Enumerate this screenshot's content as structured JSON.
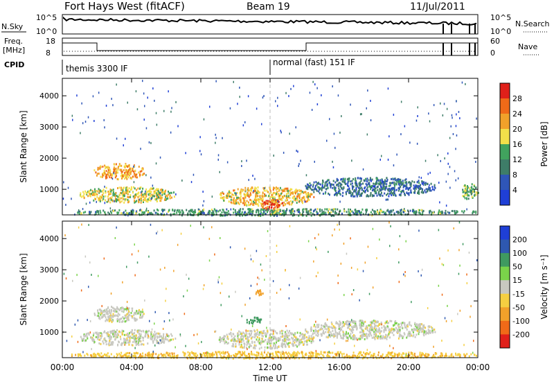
{
  "header": {
    "site": "Fort Hays West (fitACF)",
    "beam": "Beam 19",
    "date": "11/Jul/2011"
  },
  "strips": {
    "nsky_label": "N.Sky",
    "nsearch_label": "N.Search",
    "noise_ticks": [
      "10^5",
      "10^0"
    ],
    "freq_label_top": "Freq.",
    "freq_label_bottom": "[MHz]",
    "freq_ticks": [
      "18",
      "8"
    ],
    "nave_label": "Nave",
    "nave_ticks": [
      "60",
      "0"
    ],
    "cpid_label": "CPID",
    "cpid_segments": [
      {
        "start_hour": 0,
        "label": "themis 3300 IF"
      },
      {
        "start_hour": 12,
        "label": "normal (fast) 151 IF"
      }
    ]
  },
  "colors": {
    "power_scale": [
      "#1f3fd6",
      "#2f56b7",
      "#3e7d68",
      "#41a35e",
      "#f2e04a",
      "#f1a12a",
      "#f06a18",
      "#e0201a"
    ],
    "velocity_scale": [
      "#e0201a",
      "#f06a18",
      "#f1a12a",
      "#f5cf41",
      "#c8c8c0",
      "#7ad34a",
      "#3f9a60",
      "#2e58b0",
      "#1f3fd6"
    ],
    "background": "#ffffff",
    "axis": "#000000"
  },
  "chart_data": [
    {
      "type": "heatmap",
      "title": "",
      "xlabel": "",
      "ylabel": "Slant Range [km]",
      "xlim": [
        0,
        24
      ],
      "ylim": [
        180,
        4560
      ],
      "x_ticks": [
        "00:00",
        "04:00",
        "08:00",
        "12:00",
        "16:00",
        "20:00",
        "00:00"
      ],
      "y_ticks": [
        "1000",
        "2000",
        "3000",
        "4000"
      ],
      "colorbar": {
        "label": "Power [dB]",
        "range": [
          0,
          32
        ],
        "ticks": [
          "4",
          "8",
          "12",
          "16",
          "20",
          "24",
          "28"
        ]
      },
      "echo_regions": [
        {
          "t0": 1.8,
          "t1": 4.7,
          "r0": 1350,
          "r1": 1850,
          "power": 22
        },
        {
          "t0": 1.0,
          "t1": 6.5,
          "r0": 600,
          "r1": 1100,
          "power": 18
        },
        {
          "t0": 9.0,
          "t1": 14.5,
          "r0": 500,
          "r1": 1100,
          "power": 20
        },
        {
          "t0": 11.5,
          "t1": 12.8,
          "r0": 300,
          "r1": 700,
          "power": 26
        },
        {
          "t0": 14.0,
          "t1": 21.5,
          "r0": 800,
          "r1": 1400,
          "power": 8
        },
        {
          "t0": 23.0,
          "t1": 24.0,
          "r0": 700,
          "r1": 1200,
          "power": 14
        },
        {
          "t0": 0.5,
          "t1": 24.0,
          "r0": 180,
          "r1": 400,
          "power": 12
        }
      ]
    },
    {
      "type": "heatmap",
      "title": "",
      "xlabel": "Time UT",
      "ylabel": "Slant Range [km]",
      "xlim": [
        0,
        24
      ],
      "ylim": [
        180,
        4560
      ],
      "x_ticks": [
        "00:00",
        "04:00",
        "08:00",
        "12:00",
        "16:00",
        "20:00",
        "00:00"
      ],
      "y_ticks": [
        "1000",
        "2000",
        "3000",
        "4000"
      ],
      "colorbar": {
        "label": "Velocity [m s⁻¹]",
        "range": [
          -250,
          250
        ],
        "ticks": [
          "200",
          "100",
          "50",
          "15",
          "-15",
          "-50",
          "-100",
          "-200"
        ]
      },
      "echo_regions": [
        {
          "t0": 1.8,
          "t1": 4.7,
          "r0": 1350,
          "r1": 1850,
          "velocity": 0
        },
        {
          "t0": 1.0,
          "t1": 6.5,
          "r0": 600,
          "r1": 1100,
          "velocity": 0
        },
        {
          "t0": 9.0,
          "t1": 14.5,
          "r0": 500,
          "r1": 1100,
          "velocity": 0
        },
        {
          "t0": 14.0,
          "t1": 21.5,
          "r0": 800,
          "r1": 1400,
          "velocity": 0
        },
        {
          "t0": 0.5,
          "t1": 24.0,
          "r0": 180,
          "r1": 400,
          "velocity": -40
        },
        {
          "t0": 10.5,
          "t1": 11.5,
          "r0": 1300,
          "r1": 1500,
          "velocity": 80
        },
        {
          "t0": 11.0,
          "t1": 11.6,
          "r0": 2200,
          "r1": 2400,
          "velocity": -80
        }
      ]
    }
  ]
}
